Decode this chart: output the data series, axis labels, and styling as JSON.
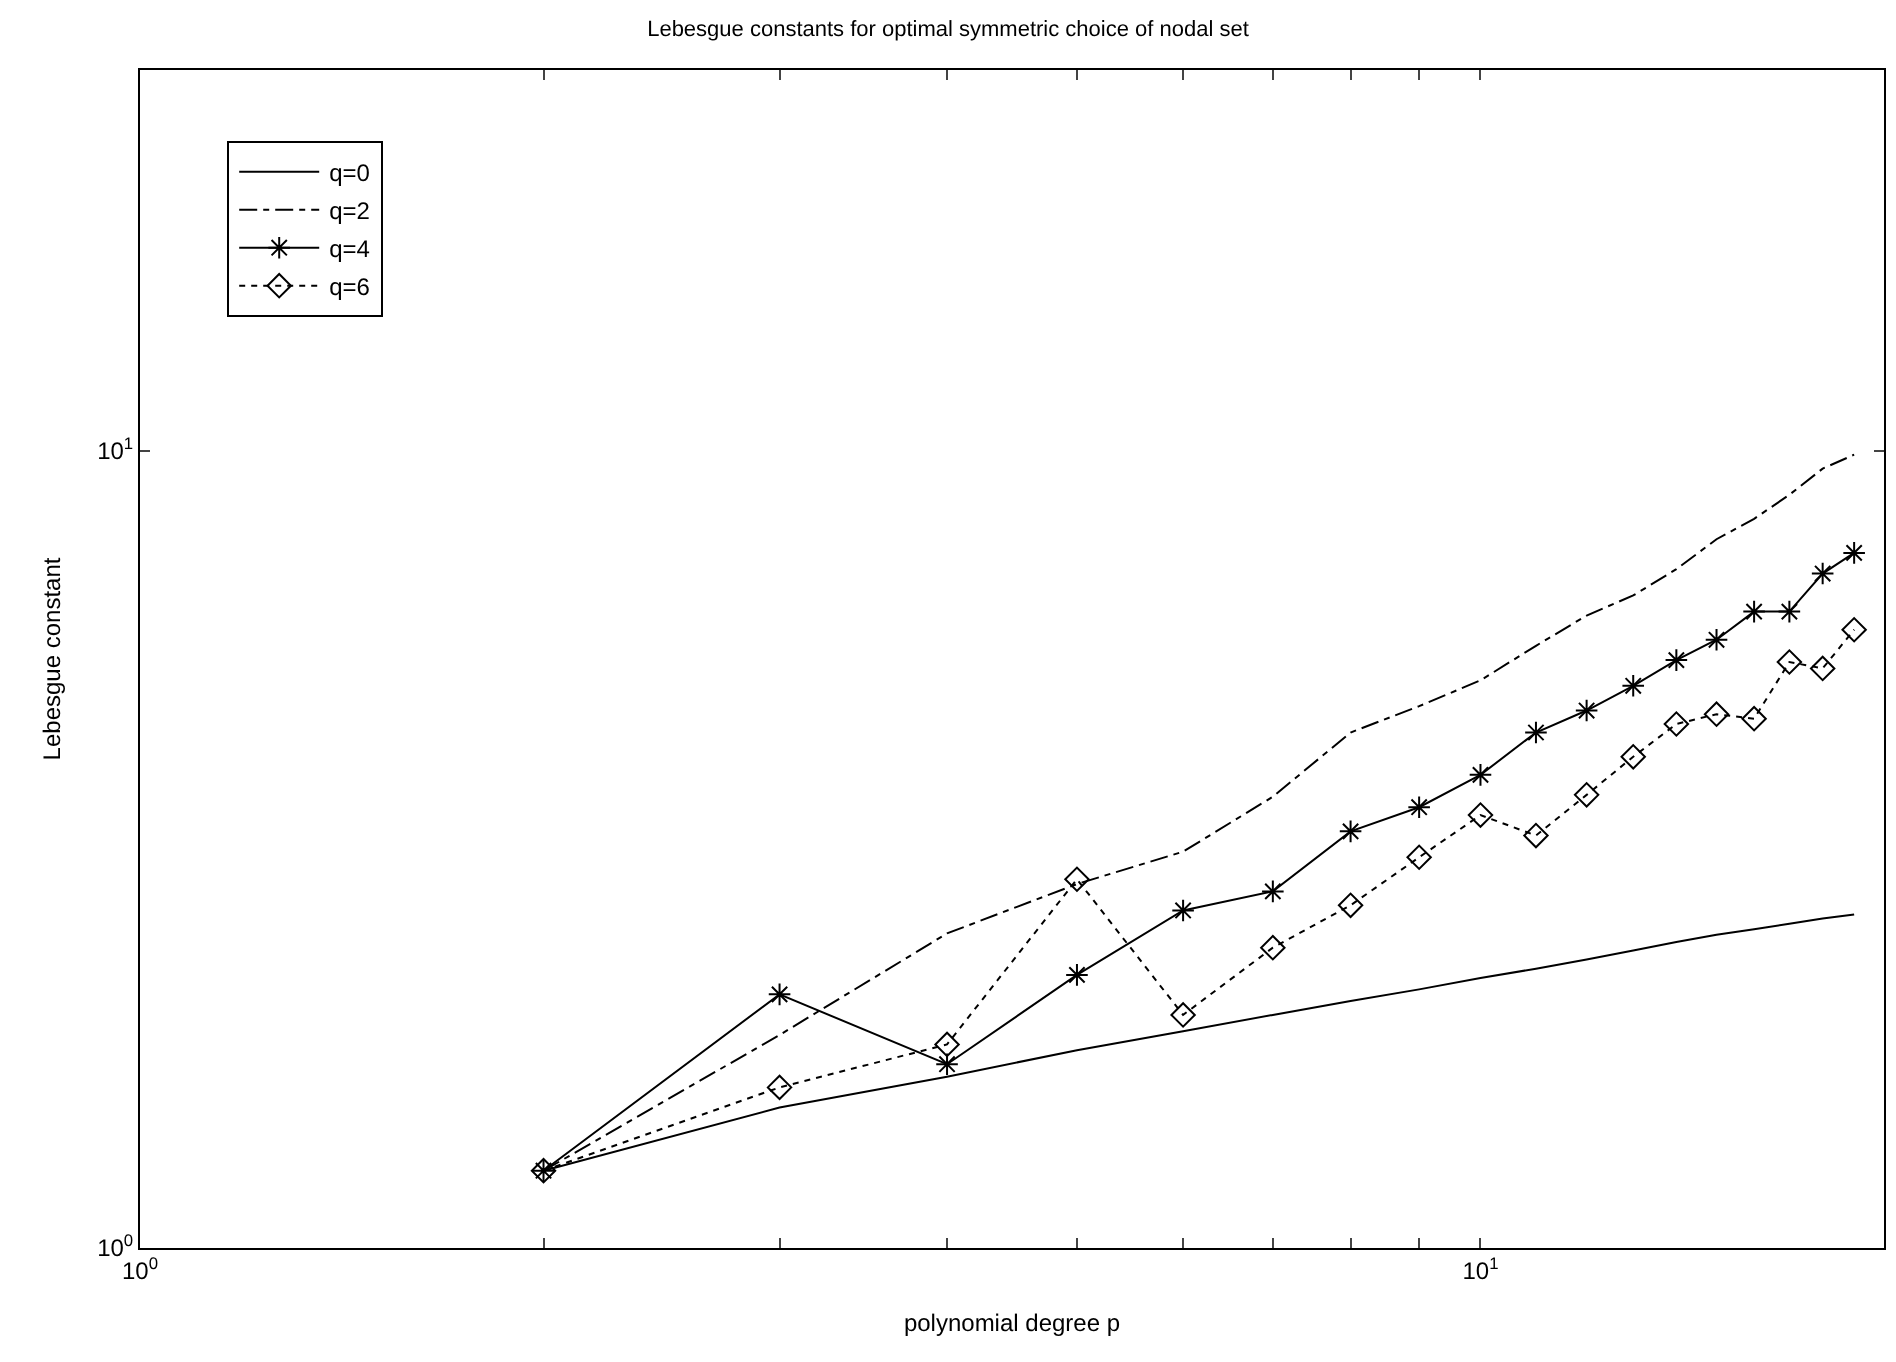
{
  "chart_data": {
    "type": "line",
    "title": "Lebesgue constants for optimal symmetric choice of nodal set",
    "xlabel": "polynomial degree p",
    "ylabel": "Lebesgue constant",
    "x": [
      2,
      3,
      4,
      5,
      6,
      7,
      8,
      9,
      10,
      11,
      12,
      13,
      14,
      15,
      16,
      17,
      18,
      19
    ],
    "series": [
      {
        "name": "q=0",
        "color": "#000000",
        "marker": "none",
        "line_style": "solid",
        "values": [
          1.25,
          1.5,
          1.64,
          1.77,
          1.87,
          1.96,
          2.04,
          2.11,
          2.18,
          2.24,
          2.3,
          2.36,
          2.42,
          2.47,
          2.51,
          2.55,
          2.59,
          2.62
        ]
      },
      {
        "name": "q=2",
        "color": "#000000",
        "marker": "none",
        "line_style": "dashed",
        "values": [
          1.25,
          1.85,
          2.48,
          2.86,
          3.14,
          3.68,
          4.43,
          4.78,
          5.15,
          5.69,
          6.21,
          6.58,
          7.1,
          7.74,
          8.21,
          8.8,
          9.49,
          9.88
        ]
      },
      {
        "name": "q=4",
        "color": "#000000",
        "marker": "cross",
        "line_style": "solid",
        "values": [
          1.25,
          2.08,
          1.7,
          2.2,
          2.65,
          2.8,
          3.33,
          3.57,
          3.92,
          4.43,
          4.72,
          5.07,
          5.46,
          5.79,
          6.28,
          6.28,
          7.01,
          7.44
        ]
      },
      {
        "name": "q=6",
        "color": "#000000",
        "marker": "diamond",
        "line_style": "dotted",
        "values": [
          1.25,
          1.59,
          1.8,
          2.9,
          1.96,
          2.38,
          2.69,
          3.09,
          3.49,
          3.29,
          3.7,
          4.13,
          4.54,
          4.67,
          4.61,
          5.43,
          5.33,
          5.96
        ]
      }
    ],
    "log": "xy",
    "xlim": [
      1,
      20
    ],
    "ylim": [
      1,
      30
    ],
    "xticks": [
      {
        "value": 1,
        "label": "10$^{0}$"
      },
      {
        "value": 2,
        "label": null
      },
      {
        "value": 3,
        "label": null
      },
      {
        "value": 4,
        "label": null
      },
      {
        "value": 5,
        "label": null
      },
      {
        "value": 6,
        "label": null
      },
      {
        "value": 7,
        "label": null
      },
      {
        "value": 8,
        "label": null
      },
      {
        "value": 9,
        "label": null
      },
      {
        "value": 10,
        "label": "10$^{1}$"
      },
      {
        "value": 20,
        "label": null
      }
    ],
    "yticks": [
      {
        "value": 1,
        "label": "10$^{0}$"
      },
      {
        "value": 10,
        "label": "10$^{1}$"
      }
    ],
    "legend": "top left"
  }
}
